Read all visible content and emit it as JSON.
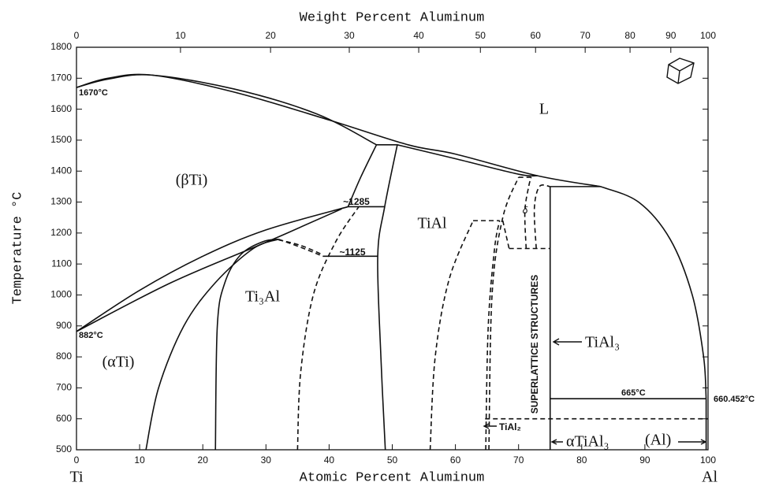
{
  "chart_data": {
    "type": "phase-diagram",
    "top_axis_title": "Weight Percent Aluminum",
    "xlabel": "Atomic Percent Aluminum",
    "ylabel": "Temperature °C",
    "left_element": "Ti",
    "right_element": "Al",
    "xlim": [
      0,
      100
    ],
    "xticks": [
      0,
      10,
      20,
      30,
      40,
      50,
      60,
      70,
      80,
      90,
      100
    ],
    "x2ticks": [
      0,
      10,
      20,
      30,
      40,
      50,
      60,
      70,
      80,
      90,
      100
    ],
    "ylim": [
      500,
      1800
    ],
    "yticks": [
      500,
      600,
      700,
      800,
      900,
      1000,
      1100,
      1200,
      1300,
      1400,
      1500,
      1600,
      1700,
      1800
    ],
    "color": "#111111",
    "annotations": [
      "1670°C",
      "L",
      "(βTi)",
      "~1285",
      "TiAl",
      "~1125",
      "δ",
      "Ti₃Al",
      "882°C",
      "(αTi)",
      "SUPERLATTICE STRUCTURES",
      "TiAl₃",
      "665°C",
      "660.452°C",
      "TiAl₂",
      "αTiAl₃",
      "(Al)"
    ],
    "boundaries": [
      {
        "style": "solid",
        "x": [
          0,
          5,
          12,
          25,
          40,
          52.5,
          60,
          73,
          83
        ],
        "y": [
          1670,
          1700,
          1710,
          1655,
          1565,
          1485,
          1455,
          1385,
          1350
        ]
      },
      {
        "style": "solid",
        "x": [
          0,
          5,
          12,
          25,
          38,
          47.5
        ],
        "y": [
          1670,
          1697,
          1710,
          1665,
          1585,
          1485
        ]
      },
      {
        "style": "solid",
        "x": [
          47.5,
          50.8
        ],
        "y": [
          1485,
          1485
        ]
      },
      {
        "style": "solid",
        "x": [
          50.8,
          60,
          70,
          73
        ],
        "y": [
          1485,
          1440,
          1390,
          1385
        ]
      },
      {
        "style": "solid",
        "x": [
          47.5,
          45,
          43
        ],
        "y": [
          1485,
          1380,
          1285
        ]
      },
      {
        "style": "solid",
        "x": [
          50.8,
          48.8,
          47.7,
          48.2,
          48.9
        ],
        "y": [
          1485,
          1285,
          1125,
          800,
          500
        ]
      },
      {
        "style": "solid",
        "x": [
          43,
          48.8
        ],
        "y": [
          1285,
          1285
        ]
      },
      {
        "style": "solid",
        "x": [
          0,
          10,
          20,
          30,
          43
        ],
        "y": [
          882,
          1015,
          1125,
          1210,
          1285
        ]
      },
      {
        "style": "solid",
        "x": [
          0,
          15,
          30,
          42
        ],
        "y": [
          882,
          1040,
          1170,
          1278
        ]
      },
      {
        "style": "solid",
        "x": [
          11,
          13,
          17,
          22,
          28,
          32
        ],
        "y": [
          500,
          700,
          900,
          1040,
          1150,
          1180
        ]
      },
      {
        "style": "dashed",
        "x": [
          32,
          36,
          39
        ],
        "y": [
          1180,
          1150,
          1125
        ]
      },
      {
        "style": "solid",
        "x": [
          22,
          22.3,
          23.5,
          26,
          29.5,
          32
        ],
        "y": [
          500,
          900,
          1040,
          1130,
          1172,
          1180
        ]
      },
      {
        "style": "dashed",
        "x": [
          32,
          35.5,
          39
        ],
        "y": [
          1178,
          1160,
          1130
        ]
      },
      {
        "style": "solid",
        "x": [
          39,
          47.7
        ],
        "y": [
          1125,
          1125
        ]
      },
      {
        "style": "dashed",
        "x": [
          35,
          35.5,
          37.5,
          41,
          44.7
        ],
        "y": [
          500,
          750,
          1000,
          1170,
          1285
        ]
      },
      {
        "style": "dashed",
        "x": [
          56,
          56.8,
          59,
          62.8
        ],
        "y": [
          500,
          800,
          1050,
          1240
        ]
      },
      {
        "style": "dashed",
        "x": [
          62.8,
          67
        ],
        "y": [
          1240,
          1240
        ]
      },
      {
        "style": "dashed",
        "x": [
          64.8,
          65.2,
          66.2,
          67
        ],
        "y": [
          500,
          900,
          1150,
          1240
        ]
      },
      {
        "style": "dashed",
        "x": [
          67.5,
          68.5
        ],
        "y": [
          1240,
          1150
        ]
      },
      {
        "style": "dashed",
        "x": [
          68.5,
          75
        ],
        "y": [
          1150,
          1150
        ]
      },
      {
        "style": "dashed",
        "x": [
          65.3,
          65.8,
          67.5,
          70
        ],
        "y": [
          500,
          1000,
          1250,
          1380
        ]
      },
      {
        "style": "dashed",
        "x": [
          70,
          72
        ],
        "y": [
          1380,
          1380
        ]
      },
      {
        "style": "dashed",
        "x": [
          71.2,
          71,
          71.6,
          72
        ],
        "y": [
          1150,
          1270,
          1350,
          1380
        ]
      },
      {
        "style": "dashed",
        "x": [
          72.8,
          72.5,
          73.3,
          75
        ],
        "y": [
          1150,
          1280,
          1350,
          1350
        ]
      },
      {
        "style": "solid",
        "x": [
          75,
          83
        ],
        "y": [
          1350,
          1350
        ]
      },
      {
        "style": "solid",
        "x": [
          83,
          89,
          94,
          97.5,
          99.3,
          99.7
        ],
        "y": [
          1350,
          1300,
          1180,
          1000,
          800,
          665
        ]
      },
      {
        "style": "solid",
        "x": [
          75,
          75
        ],
        "y": [
          500,
          1350
        ]
      },
      {
        "style": "solid",
        "x": [
          75,
          99.7
        ],
        "y": [
          665,
          665
        ]
      },
      {
        "style": "dashed",
        "x": [
          64.7,
          100
        ],
        "y": [
          600,
          600
        ]
      },
      {
        "style": "solid",
        "x": [
          99.7,
          99.7
        ],
        "y": [
          500,
          665
        ]
      }
    ]
  }
}
